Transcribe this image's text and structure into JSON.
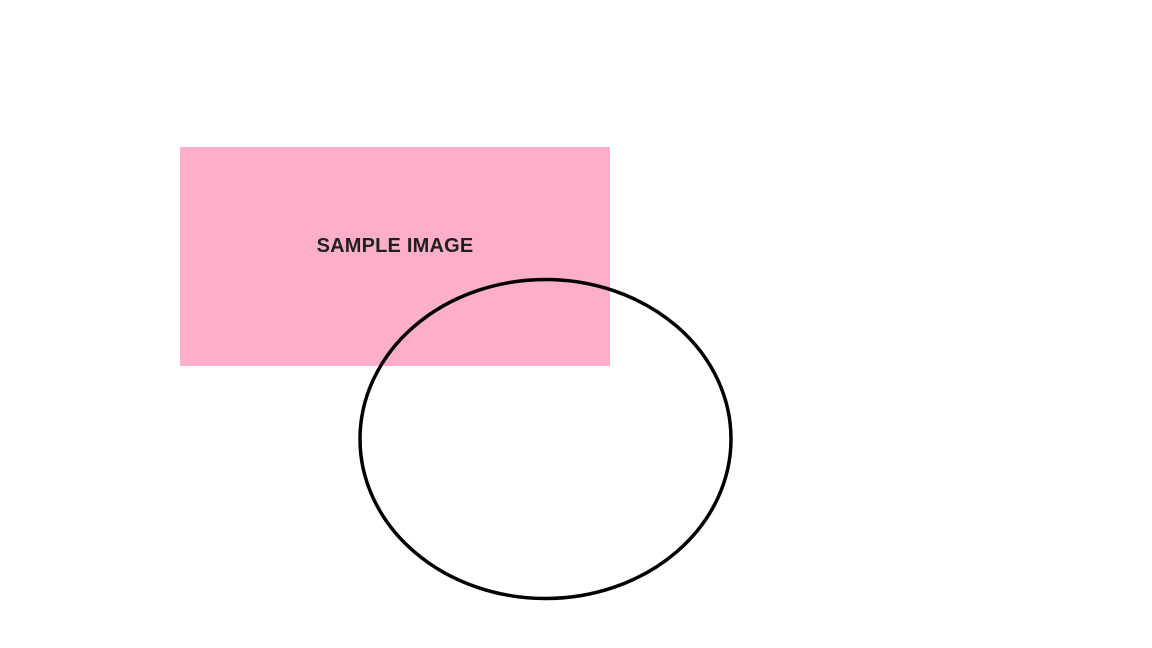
{
  "placeholder": {
    "label": "SAMPLE IMAGE",
    "fill_color": "#fdafca",
    "text_color": "#1f1f1f"
  },
  "outline_shape": {
    "shape": "ellipse",
    "stroke_color": "#000000",
    "fill": "none"
  },
  "background_color": "#ffffff"
}
